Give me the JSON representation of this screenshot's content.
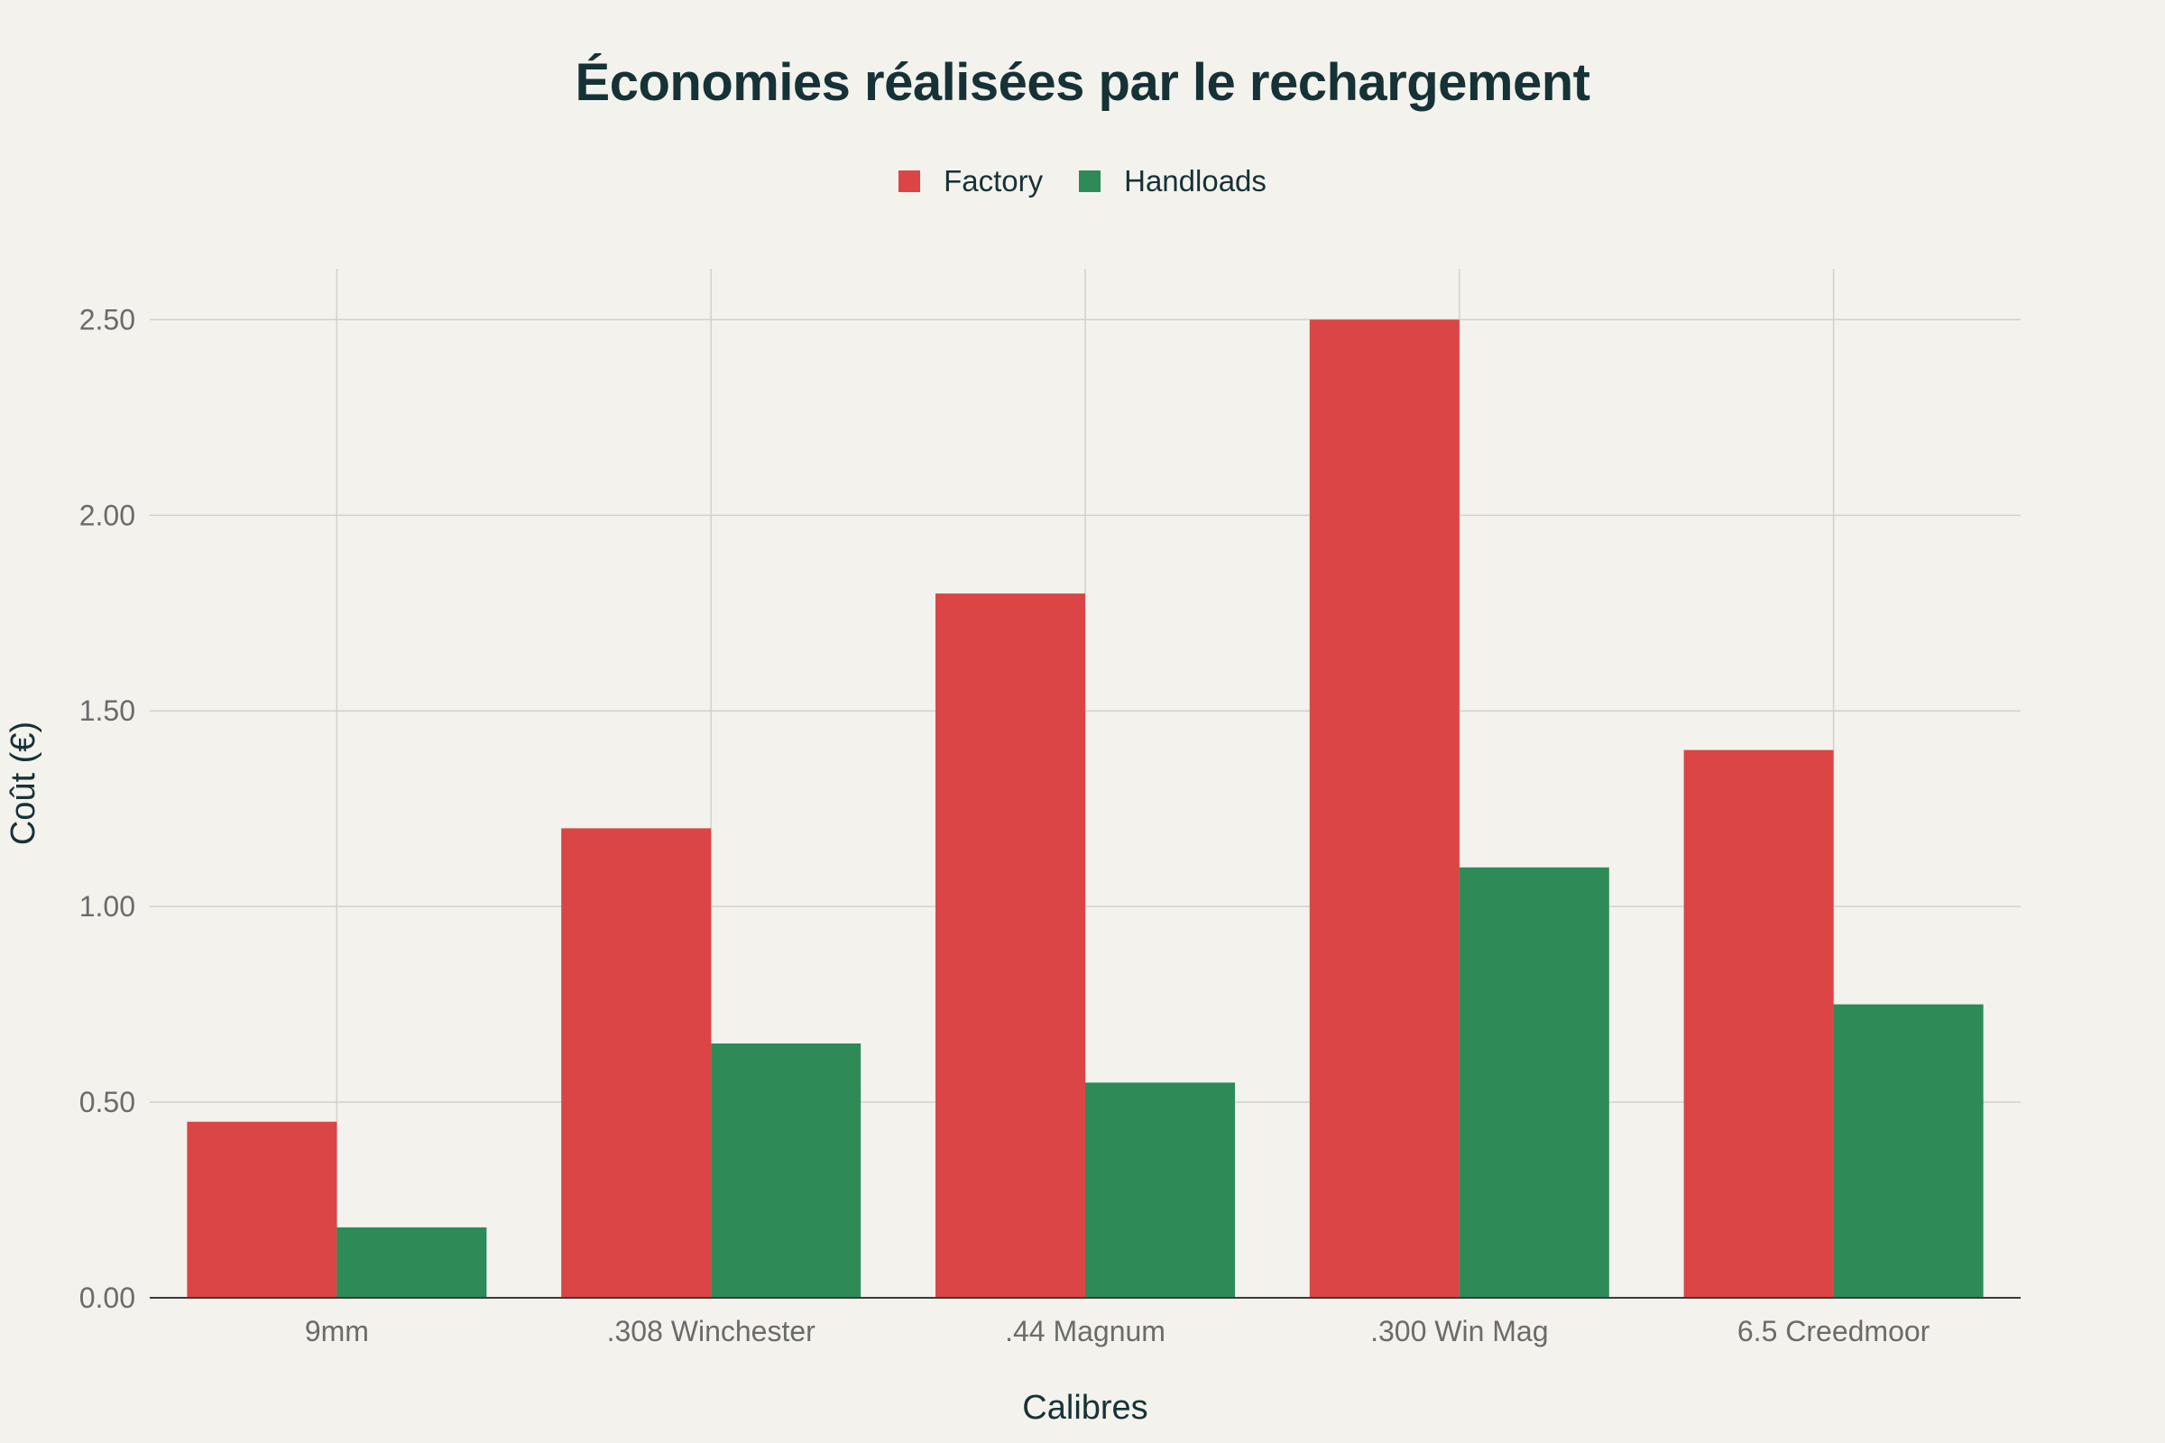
{
  "chart_data": {
    "type": "bar",
    "title": "Économies réalisées par le rechargement",
    "xlabel": "Calibres",
    "ylabel": "Coût (€)",
    "categories": [
      "9mm",
      ".308 Winchester",
      ".44 Magnum",
      ".300 Win Mag",
      "6.5 Creedmoor"
    ],
    "series": [
      {
        "name": "Factory",
        "color": "#db4545",
        "values": [
          0.45,
          1.2,
          1.8,
          2.5,
          1.4
        ]
      },
      {
        "name": "Handloads",
        "color": "#2e8b57",
        "values": [
          0.18,
          0.65,
          0.55,
          1.1,
          0.75
        ]
      }
    ],
    "yticks": [
      "0.00",
      "0.50",
      "1.00",
      "1.50",
      "2.00",
      "2.50"
    ],
    "ylim": [
      0,
      2.63
    ],
    "grid": true,
    "legend_position": "top-center"
  }
}
